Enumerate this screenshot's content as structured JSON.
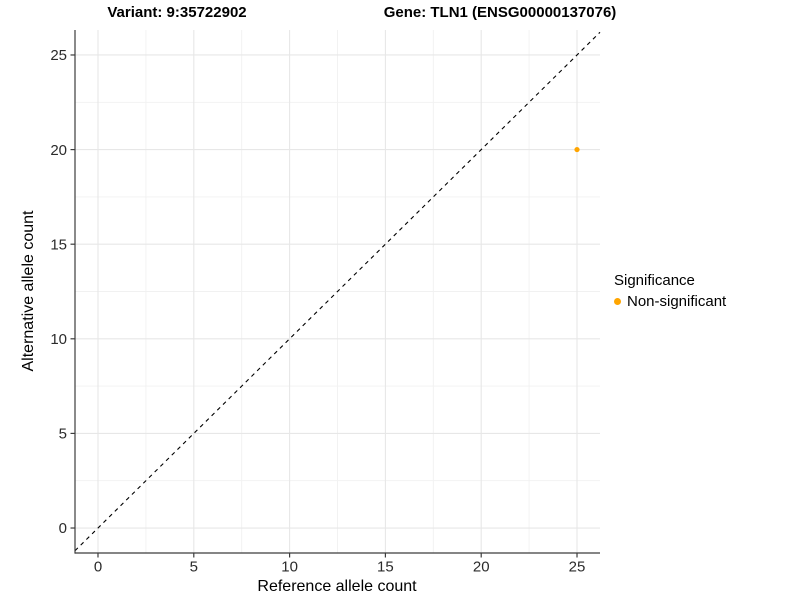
{
  "titles": {
    "left": "Variant: 9:35722902",
    "right": "Gene: TLN1 (ENSG00000137076)"
  },
  "legend": {
    "title": "Significance",
    "items": [
      {
        "label": "Non-significant",
        "color": "#FFA500"
      }
    ]
  },
  "colors": {
    "point": "#FFA500",
    "grid_major": "#e7e7e7",
    "grid_minor": "#f1f1f1",
    "axis_line": "#3c3c3c",
    "tick_text": "#2b2b2b",
    "reference_line": "#000000",
    "background": "#ffffff"
  },
  "chart_data": {
    "type": "scatter",
    "title_left": "Variant: 9:35722902",
    "title_right": "Gene: TLN1 (ENSG00000137076)",
    "xlabel": "Reference allele count",
    "ylabel": "Alternative allele count",
    "xlim": [
      -1.2,
      26.2
    ],
    "ylim": [
      -1.32,
      26.32
    ],
    "x_ticks": [
      0,
      5,
      10,
      15,
      20,
      25
    ],
    "y_ticks": [
      0,
      5,
      10,
      15,
      20,
      25
    ],
    "minor_ticks": [
      2.5,
      7.5,
      12.5,
      17.5,
      22.5
    ],
    "grid": true,
    "legend_position": "right",
    "reference_line": {
      "type": "identity",
      "slope": 1,
      "intercept": 0,
      "style": "dashed"
    },
    "series": [
      {
        "name": "Non-significant",
        "color": "#FFA500",
        "points": [
          {
            "x": 25,
            "y": 20
          }
        ]
      }
    ]
  }
}
